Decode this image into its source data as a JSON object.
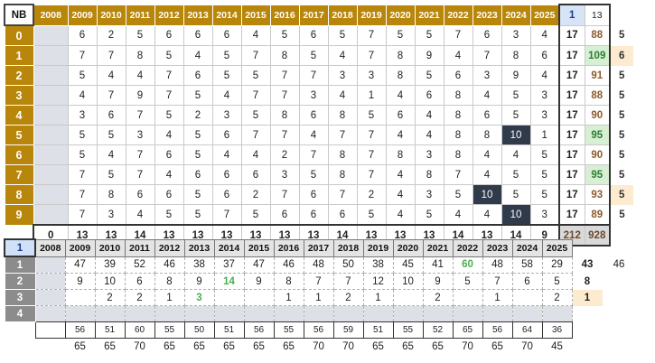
{
  "top": {
    "corner": "NB",
    "years": [
      "2008",
      "2009",
      "2010",
      "2011",
      "2012",
      "2013",
      "2014",
      "2015",
      "2016",
      "2017",
      "2018",
      "2019",
      "2020",
      "2021",
      "2022",
      "2023",
      "2024",
      "2025"
    ],
    "col_a": "1",
    "col_b": "13",
    "rows": [
      {
        "label": "0",
        "vals": [
          "",
          "6",
          "2",
          "5",
          "6",
          "6",
          "6",
          "4",
          "5",
          "6",
          "5",
          "7",
          "5",
          "5",
          "7",
          "6",
          "3",
          "4"
        ],
        "a": "17",
        "b": "88",
        "x": "5"
      },
      {
        "label": "1",
        "vals": [
          "",
          "7",
          "7",
          "8",
          "5",
          "4",
          "5",
          "7",
          "8",
          "5",
          "4",
          "7",
          "8",
          "9",
          "4",
          "7",
          "8",
          "6"
        ],
        "a": "17",
        "b": "109",
        "x": "6"
      },
      {
        "label": "2",
        "vals": [
          "",
          "5",
          "4",
          "4",
          "7",
          "6",
          "5",
          "5",
          "7",
          "7",
          "3",
          "3",
          "8",
          "5",
          "6",
          "3",
          "9",
          "4"
        ],
        "a": "17",
        "b": "91",
        "x": "5"
      },
      {
        "label": "3",
        "vals": [
          "",
          "4",
          "7",
          "9",
          "7",
          "5",
          "4",
          "7",
          "7",
          "3",
          "4",
          "1",
          "4",
          "6",
          "8",
          "4",
          "5",
          "3"
        ],
        "a": "17",
        "b": "88",
        "x": "5"
      },
      {
        "label": "4",
        "vals": [
          "",
          "3",
          "6",
          "7",
          "5",
          "2",
          "3",
          "5",
          "8",
          "6",
          "8",
          "5",
          "6",
          "4",
          "8",
          "6",
          "5",
          "3"
        ],
        "a": "17",
        "b": "90",
        "x": "5"
      },
      {
        "label": "5",
        "vals": [
          "",
          "5",
          "5",
          "3",
          "4",
          "5",
          "6",
          "7",
          "7",
          "4",
          "7",
          "7",
          "4",
          "4",
          "8",
          "8",
          "10",
          "1"
        ],
        "a": "17",
        "b": "95",
        "x": "5"
      },
      {
        "label": "6",
        "vals": [
          "",
          "5",
          "4",
          "7",
          "6",
          "5",
          "4",
          "4",
          "2",
          "7",
          "8",
          "7",
          "8",
          "3",
          "8",
          "4",
          "4",
          "5"
        ],
        "a": "17",
        "b": "90",
        "x": "5"
      },
      {
        "label": "7",
        "vals": [
          "",
          "7",
          "5",
          "7",
          "4",
          "6",
          "6",
          "6",
          "3",
          "5",
          "8",
          "7",
          "4",
          "8",
          "7",
          "4",
          "5",
          "5"
        ],
        "a": "17",
        "b": "95",
        "x": "5"
      },
      {
        "label": "8",
        "vals": [
          "",
          "7",
          "8",
          "6",
          "6",
          "5",
          "6",
          "2",
          "7",
          "6",
          "7",
          "2",
          "4",
          "3",
          "5",
          "10",
          "5",
          "5"
        ],
        "a": "17",
        "b": "93",
        "x": "5"
      },
      {
        "label": "9",
        "vals": [
          "",
          "7",
          "3",
          "4",
          "5",
          "5",
          "7",
          "5",
          "6",
          "6",
          "6",
          "5",
          "4",
          "5",
          "4",
          "4",
          "10",
          "3"
        ],
        "a": "17",
        "b": "89",
        "x": "5"
      }
    ],
    "footer": [
      "0",
      "13",
      "13",
      "14",
      "13",
      "13",
      "13",
      "13",
      "13",
      "13",
      "14",
      "13",
      "13",
      "13",
      "14",
      "13",
      "14",
      "9"
    ],
    "footer_a": "212",
    "footer_b": "928"
  },
  "bottom": {
    "corner": "1",
    "years": [
      "2008",
      "2009",
      "2010",
      "2011",
      "2012",
      "2013",
      "2014",
      "2015",
      "2016",
      "2017",
      "2018",
      "2019",
      "2020",
      "2021",
      "2022",
      "2023",
      "2024",
      "2025"
    ],
    "rows": [
      {
        "label": "1",
        "vals": [
          "",
          "47",
          "39",
          "52",
          "46",
          "38",
          "37",
          "47",
          "46",
          "48",
          "50",
          "38",
          "45",
          "41",
          "60",
          "48",
          "58",
          "29"
        ],
        "e1": "43",
        "e2": "46"
      },
      {
        "label": "2",
        "vals": [
          "",
          "9",
          "10",
          "6",
          "8",
          "9",
          "14",
          "9",
          "8",
          "7",
          "7",
          "12",
          "10",
          "9",
          "5",
          "7",
          "6",
          "5"
        ],
        "e1": "8",
        "e2": ""
      },
      {
        "label": "3",
        "vals": [
          "",
          "",
          "2",
          "2",
          "1",
          "3",
          "",
          "",
          "1",
          "1",
          "2",
          "1",
          "",
          "2",
          "",
          "1",
          "",
          "2"
        ],
        "e1": "1",
        "e2": ""
      },
      {
        "label": "4",
        "vals": [
          "",
          "",
          "",
          "",
          "",
          "",
          "",
          "",
          "",
          "",
          "",
          "",
          "",
          "",
          "",
          "",
          "",
          ""
        ],
        "e1": "",
        "e2": ""
      }
    ],
    "foot1": [
      "",
      "56",
      "51",
      "60",
      "55",
      "50",
      "51",
      "56",
      "55",
      "56",
      "59",
      "51",
      "55",
      "52",
      "65",
      "56",
      "64",
      "36"
    ],
    "foot2": [
      "",
      "65",
      "65",
      "70",
      "65",
      "65",
      "65",
      "65",
      "65",
      "70",
      "70",
      "65",
      "65",
      "65",
      "70",
      "65",
      "70",
      "45"
    ]
  },
  "colors": {
    "gold": "#b8860b",
    "dark_cell": "#2f3a4a",
    "green_fill": "#d7efd3",
    "peach_fill": "#fdebd0",
    "blue_fill": "#d6e4f5"
  }
}
